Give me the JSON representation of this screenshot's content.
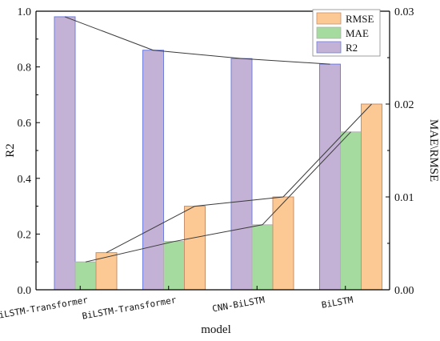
{
  "chart_data": {
    "type": "bar",
    "categories": [
      "CNN-BiLSTM-Transformer",
      "BiLSTM-Transformer",
      "CNN-BiLSTM",
      "BiLSTM"
    ],
    "xlabel": "model",
    "ylabel_left": "R2",
    "ylabel_right": "MAE\\RMSE",
    "ylim_left": [
      0,
      1.0
    ],
    "ylim_right": [
      0,
      0.03
    ],
    "yticks_left": [
      "0.0",
      "0.2",
      "0.4",
      "0.6",
      "0.8",
      "1.0"
    ],
    "yticks_right": [
      "0.00",
      "0.01",
      "0.02",
      "0.03"
    ],
    "series": [
      {
        "name": "R2",
        "axis": "left",
        "color": "#c3b1d6",
        "edge": "#6f7fe0",
        "values": [
          0.98,
          0.86,
          0.83,
          0.81
        ]
      },
      {
        "name": "MAE",
        "axis": "right",
        "color": "#a6dba0",
        "edge": "#b0b0b0",
        "values": [
          0.003,
          0.0052,
          0.007,
          0.017
        ]
      },
      {
        "name": "RMSE",
        "axis": "right",
        "color": "#fcc893",
        "edge": "#c8906a",
        "values": [
          0.004,
          0.009,
          0.01,
          0.02
        ]
      }
    ],
    "legend": {
      "position": "top-right",
      "order": [
        "RMSE",
        "MAE",
        "R2"
      ]
    },
    "grid": false
  }
}
